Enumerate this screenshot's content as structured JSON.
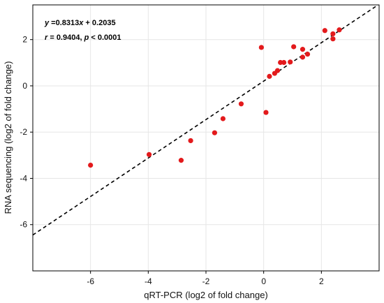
{
  "chart_data": {
    "type": "scatter",
    "title": "",
    "xlabel": "qRT-PCR (log2 of fold change)",
    "ylabel": "RNA sequencing (log2 of fold change)",
    "xlim": [
      -8,
      4
    ],
    "ylim": [
      -8,
      3.5
    ],
    "xticks": [
      -6,
      -4,
      -2,
      0,
      2
    ],
    "yticks": [
      -6,
      -4,
      -2,
      0,
      2
    ],
    "xtick_labels": [
      "-6",
      "-4",
      "-2",
      "0",
      "2"
    ],
    "ytick_labels": [
      "-6",
      "-4",
      "-2",
      "0",
      "2"
    ],
    "grid": true,
    "points": [
      {
        "x": -6.0,
        "y": -3.43
      },
      {
        "x": -3.97,
        "y": -2.97
      },
      {
        "x": -2.86,
        "y": -3.22
      },
      {
        "x": -2.53,
        "y": -2.37
      },
      {
        "x": -1.7,
        "y": -2.03
      },
      {
        "x": -1.41,
        "y": -1.42
      },
      {
        "x": -0.78,
        "y": -0.78
      },
      {
        "x": -0.08,
        "y": 1.66
      },
      {
        "x": 0.08,
        "y": -1.15
      },
      {
        "x": 0.2,
        "y": 0.41
      },
      {
        "x": 0.38,
        "y": 0.54
      },
      {
        "x": 0.48,
        "y": 0.66
      },
      {
        "x": 0.58,
        "y": 1.01
      },
      {
        "x": 0.7,
        "y": 1.01
      },
      {
        "x": 0.92,
        "y": 1.03
      },
      {
        "x": 1.04,
        "y": 1.69
      },
      {
        "x": 1.35,
        "y": 1.24
      },
      {
        "x": 1.35,
        "y": 1.58
      },
      {
        "x": 1.52,
        "y": 1.37
      },
      {
        "x": 2.12,
        "y": 2.39
      },
      {
        "x": 2.4,
        "y": 2.03
      },
      {
        "x": 2.4,
        "y": 2.25
      },
      {
        "x": 2.62,
        "y": 2.42
      }
    ],
    "fit": {
      "slope": 0.8313,
      "intercept": 0.2035
    },
    "annotations": {
      "equation": "y =0.8313x + 0.2035",
      "stats": "r = 0.9404, p < 0.0001"
    },
    "colors": {
      "points": "#e31a1c",
      "fit_line": "#000000",
      "grid": "#e6e6e6",
      "axes": "#000000"
    }
  }
}
